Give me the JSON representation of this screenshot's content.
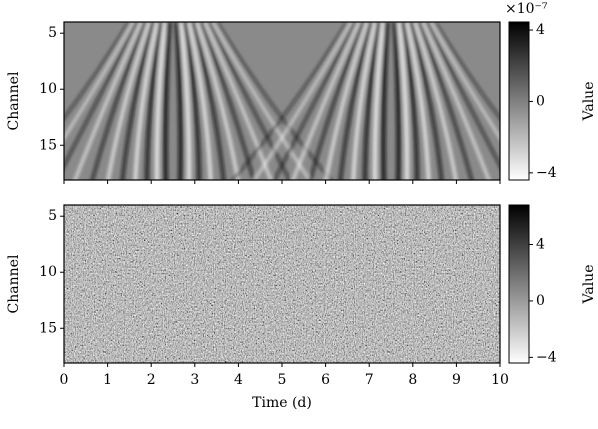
{
  "chart_data": [
    {
      "type": "heatmap",
      "ylabel": "Channel",
      "xlim": [
        0,
        10
      ],
      "xticks": [
        0,
        1,
        2,
        3,
        4,
        5,
        6,
        7,
        8,
        9,
        10
      ],
      "ylim": [
        18.1,
        4.0
      ],
      "yticks": [
        5,
        10,
        15
      ],
      "colormap": "gray_r",
      "colorbar": {
        "label": "Value",
        "lim": [
          -4.4,
          4.45
        ],
        "ticks": [
          4,
          0,
          {
            "value": -4,
            "label": "−4"
          }
        ],
        "offset_text": "×10⁻⁷"
      }
    },
    {
      "type": "heatmap",
      "ylabel": "Channel",
      "xlabel": "Time (d)",
      "xlim": [
        0,
        10
      ],
      "xticks": [
        0,
        1,
        2,
        3,
        4,
        5,
        6,
        7,
        8,
        9,
        10
      ],
      "ylim": [
        18.1,
        4.0
      ],
      "yticks": [
        5,
        10,
        15
      ],
      "colormap": "gray_r",
      "colorbar": {
        "label": "Value",
        "lim": [
          -4.4,
          6.8
        ],
        "ticks": [
          4,
          0,
          {
            "value": -4,
            "label": "−4"
          }
        ]
      }
    }
  ]
}
